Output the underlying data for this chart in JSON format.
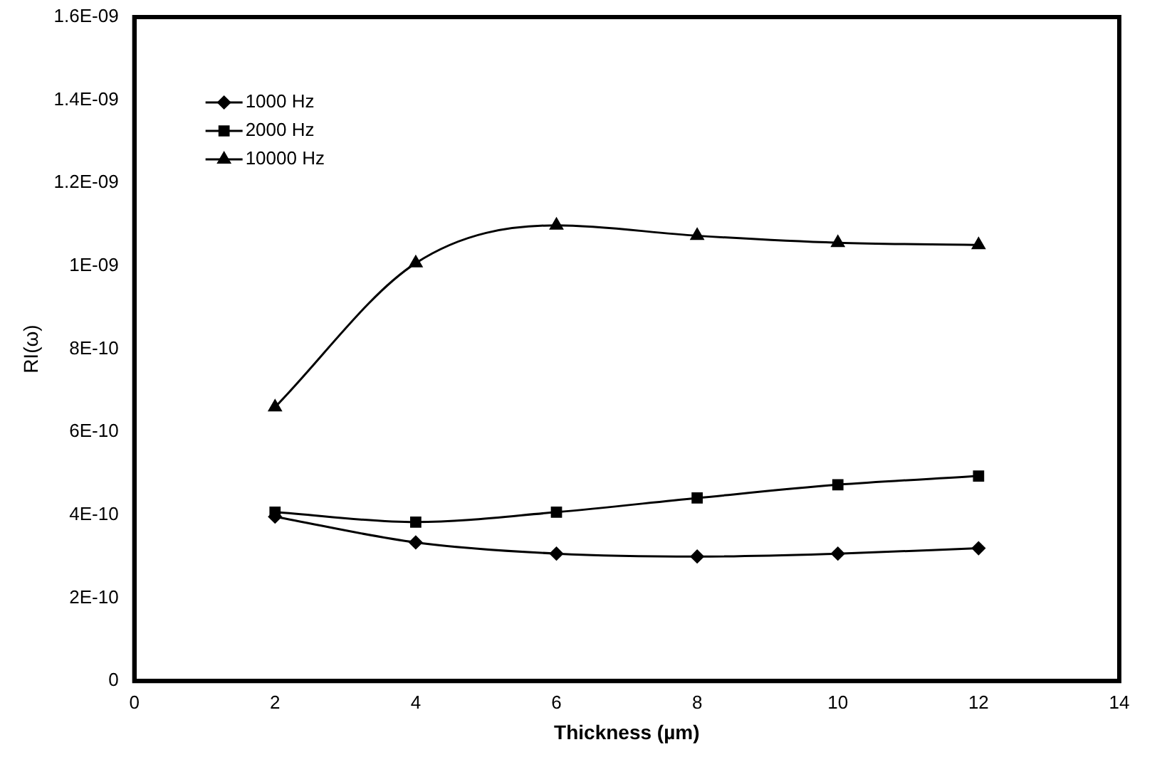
{
  "chart_data": {
    "type": "line",
    "xlabel": "Thickness (µm)",
    "ylabel": "RI(ω)",
    "x": [
      2,
      4,
      6,
      8,
      10,
      12
    ],
    "series": [
      {
        "name": "1000 Hz",
        "color": "#000000",
        "marker": "diamond",
        "values": [
          3.96e-10,
          3.34e-10,
          3.07e-10,
          3e-10,
          3.07e-10,
          3.2e-10
        ]
      },
      {
        "name": "2000 Hz",
        "color": "#000000",
        "marker": "square",
        "values": [
          4.07e-10,
          3.83e-10,
          4.07e-10,
          4.41e-10,
          4.73e-10,
          4.94e-10
        ]
      },
      {
        "name": "10000 Hz",
        "color": "#000000",
        "marker": "triangle",
        "values": [
          6.6e-10,
          1.007e-09,
          1.098e-09,
          1.073e-09,
          1.056e-09,
          1.051e-09
        ]
      }
    ],
    "xlim": [
      0,
      14
    ],
    "xticks": [
      0,
      2,
      4,
      6,
      8,
      10,
      12,
      14
    ],
    "ylim": [
      0,
      1.6e-09
    ],
    "yticks": [
      0,
      {
        "value": 2e-10,
        "label": "2E-10"
      },
      {
        "value": 4e-10,
        "label": "4E-10"
      },
      {
        "value": 6e-10,
        "label": "6E-10"
      },
      {
        "value": 8e-10,
        "label": "8E-10"
      },
      {
        "value": 1e-09,
        "label": "1E-09"
      },
      {
        "value": 1.2e-09,
        "label": "1.2E-09"
      },
      {
        "value": 1.4e-09,
        "label": "1.4E-09"
      },
      {
        "value": 1.6e-09,
        "label": "1.6E-09"
      }
    ],
    "grid": false,
    "legend": "top left",
    "line_style": "solid"
  }
}
